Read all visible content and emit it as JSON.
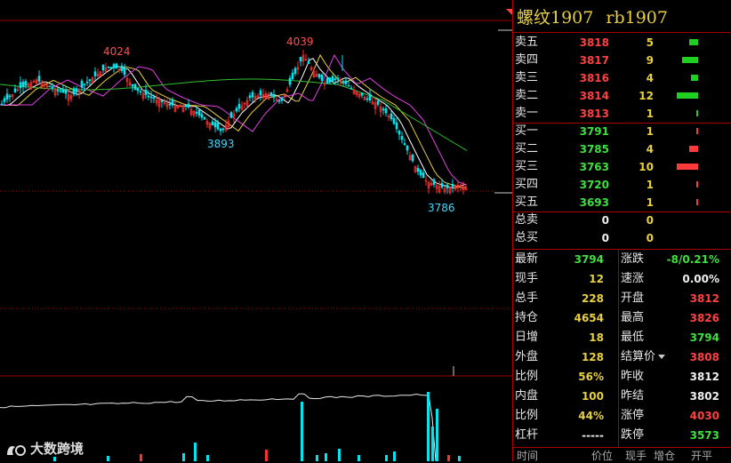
{
  "chart": {
    "annotations": {
      "high1": "4024",
      "high2": "4039",
      "low1": "3893",
      "low2": "3786"
    },
    "colors": {
      "up": "#ff3030",
      "down": "#00e5ee",
      "ma1": "#ffffff",
      "ma2": "#e8d040",
      "ma3": "#e040e0",
      "ma4": "#30c030",
      "grid": "#a00000"
    }
  },
  "panel": {
    "title_name": "螺纹1907",
    "title_contract": "rb1907",
    "asks": [
      {
        "label": "卖五",
        "price": "3818",
        "volume": "5",
        "bar": 0.42
      },
      {
        "label": "卖四",
        "price": "3817",
        "volume": "9",
        "bar": 0.75
      },
      {
        "label": "卖三",
        "price": "3816",
        "volume": "4",
        "bar": 0.33
      },
      {
        "label": "卖二",
        "price": "3814",
        "volume": "12",
        "bar": 1.0
      },
      {
        "label": "卖一",
        "price": "3813",
        "volume": "1",
        "bar": 0.08
      }
    ],
    "bids": [
      {
        "label": "买一",
        "price": "3791",
        "volume": "1",
        "bar": 0.1
      },
      {
        "label": "买二",
        "price": "3785",
        "volume": "4",
        "bar": 0.4
      },
      {
        "label": "买三",
        "price": "3763",
        "volume": "10",
        "bar": 1.0
      },
      {
        "label": "买四",
        "price": "3720",
        "volume": "1",
        "bar": 0.1
      },
      {
        "label": "买五",
        "price": "3693",
        "volume": "1",
        "bar": 0.1
      }
    ],
    "totals": [
      {
        "label": "总卖",
        "a": "0",
        "b": "0"
      },
      {
        "label": "总买",
        "a": "0",
        "b": "0"
      }
    ],
    "quotes_left": [
      {
        "label": "最新",
        "value": "3794",
        "color": "green"
      },
      {
        "label": "现手",
        "value": "12",
        "color": "yellow"
      },
      {
        "label": "总手",
        "value": "228",
        "color": "yellow"
      },
      {
        "label": "持仓",
        "value": "4654",
        "color": "yellow"
      },
      {
        "label": "日增",
        "value": "18",
        "color": "yellow"
      },
      {
        "label": "外盘",
        "value": "128",
        "color": "yellow"
      },
      {
        "label": "比例",
        "value": "56%",
        "color": "yellow"
      },
      {
        "label": "内盘",
        "value": "100",
        "color": "yellow"
      },
      {
        "label": "比例",
        "value": "44%",
        "color": "yellow"
      },
      {
        "label": "杠杆",
        "value": "-----",
        "color": "white"
      }
    ],
    "quotes_right": [
      {
        "label": "涨跌",
        "value": "-8/0.21%",
        "color": "green"
      },
      {
        "label": "速涨",
        "value": "0.00%",
        "color": "white"
      },
      {
        "label": "开盘",
        "value": "3812",
        "color": "red"
      },
      {
        "label": "最高",
        "value": "3826",
        "color": "red"
      },
      {
        "label": "最低",
        "value": "3794",
        "color": "green"
      },
      {
        "label": "结算价",
        "value": "3808",
        "color": "red",
        "dropdown": true
      },
      {
        "label": "昨收",
        "value": "3812",
        "color": "white"
      },
      {
        "label": "昨结",
        "value": "3802",
        "color": "white"
      },
      {
        "label": "涨停",
        "value": "4030",
        "color": "red"
      },
      {
        "label": "跌停",
        "value": "3573",
        "color": "green"
      }
    ],
    "footer": [
      "时间",
      "价位",
      "现手",
      "增仓",
      "开平"
    ]
  },
  "watermark": {
    "text": "大数跨境",
    "icon": "logo-icon"
  }
}
